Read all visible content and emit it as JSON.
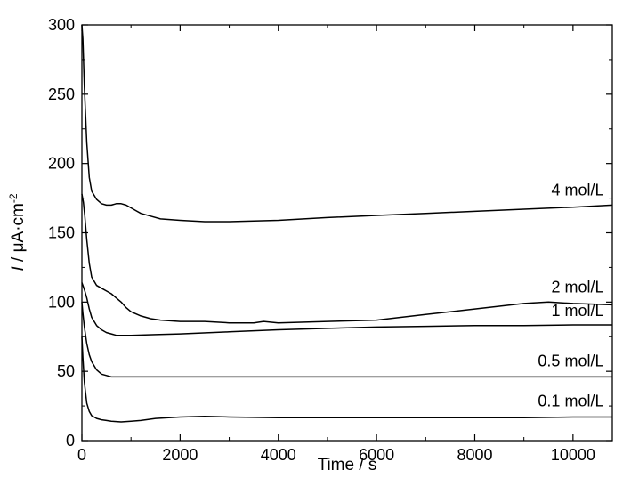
{
  "chart_data": {
    "type": "line",
    "title": "",
    "xlabel": "Time / s",
    "ylabel": {
      "italic": "I",
      "rest": " / μA·cm",
      "superscript": "-2"
    },
    "xlim": [
      0,
      10800
    ],
    "ylim": [
      0,
      300
    ],
    "xticks": [
      0,
      2000,
      4000,
      6000,
      8000,
      10000
    ],
    "yticks": [
      0,
      50,
      100,
      150,
      200,
      250,
      300
    ],
    "xtick_labels": [
      "0",
      "2000",
      "4000",
      "6000",
      "8000",
      "10000"
    ],
    "ytick_labels": [
      "0",
      "50",
      "100",
      "150",
      "200",
      "250",
      "300"
    ],
    "grid": false,
    "legend": "inline labels at right end of each curve",
    "series": [
      {
        "name": "4 mol/L",
        "x": [
          0,
          20,
          50,
          100,
          150,
          200,
          300,
          400,
          500,
          600,
          700,
          800,
          900,
          1000,
          1100,
          1200,
          1400,
          1600,
          2000,
          2500,
          3000,
          3500,
          4000,
          5000,
          6000,
          7000,
          8000,
          9000,
          10000,
          10800
        ],
        "y": [
          300,
          290,
          255,
          215,
          190,
          180,
          174,
          171,
          170,
          170,
          171,
          171,
          170,
          168,
          166,
          164,
          162,
          160,
          159,
          158,
          158,
          158.5,
          159,
          161,
          162.5,
          164,
          165.5,
          167,
          168.5,
          170
        ]
      },
      {
        "name": "2 mol/L",
        "x": [
          0,
          30,
          60,
          100,
          150,
          200,
          300,
          400,
          500,
          600,
          700,
          800,
          900,
          1000,
          1200,
          1400,
          1600,
          2000,
          2500,
          3000,
          3500,
          3700,
          4000,
          5000,
          6000,
          7000,
          8000,
          8500,
          9000,
          9500,
          10000,
          10800
        ],
        "y": [
          178,
          172,
          162,
          145,
          128,
          118,
          112,
          110,
          108,
          106,
          103,
          100,
          96,
          93,
          90,
          88,
          87,
          86,
          86,
          85,
          85,
          86,
          85,
          86,
          87,
          91,
          95,
          97,
          99,
          100,
          99,
          98
        ]
      },
      {
        "name": "1 mol/L",
        "x": [
          0,
          30,
          60,
          100,
          150,
          200,
          300,
          400,
          500,
          600,
          700,
          800,
          1000,
          1500,
          2000,
          3000,
          4000,
          5000,
          6000,
          7000,
          8000,
          9000,
          10000,
          10800
        ],
        "y": [
          114,
          111,
          108,
          103,
          95,
          89,
          83,
          80,
          78,
          77,
          76,
          76,
          76,
          76.5,
          77,
          78.5,
          80,
          81,
          82,
          82.5,
          83,
          83,
          83.5,
          83.5
        ]
      },
      {
        "name": "0.5 mol/L",
        "x": [
          0,
          20,
          50,
          100,
          150,
          200,
          300,
          400,
          500,
          600,
          800,
          1000,
          2000,
          4000,
          6000,
          8000,
          10000,
          10800
        ],
        "y": [
          100,
          92,
          82,
          70,
          62,
          57,
          51,
          48,
          47,
          46,
          46,
          46,
          46,
          46,
          46,
          46,
          46,
          46
        ]
      },
      {
        "name": "0.1 mol/L",
        "x": [
          0,
          20,
          50,
          100,
          150,
          200,
          300,
          400,
          500,
          600,
          800,
          1000,
          1200,
          1500,
          2000,
          2500,
          3000,
          4000,
          5000,
          6000,
          7000,
          8000,
          9000,
          10000,
          10800
        ],
        "y": [
          75,
          60,
          42,
          27,
          21,
          18,
          16,
          15,
          14.5,
          14,
          13.5,
          14,
          14.5,
          16,
          17,
          17.5,
          17,
          16.5,
          16.5,
          16.5,
          16.5,
          16.5,
          16.5,
          17,
          17
        ]
      }
    ]
  }
}
